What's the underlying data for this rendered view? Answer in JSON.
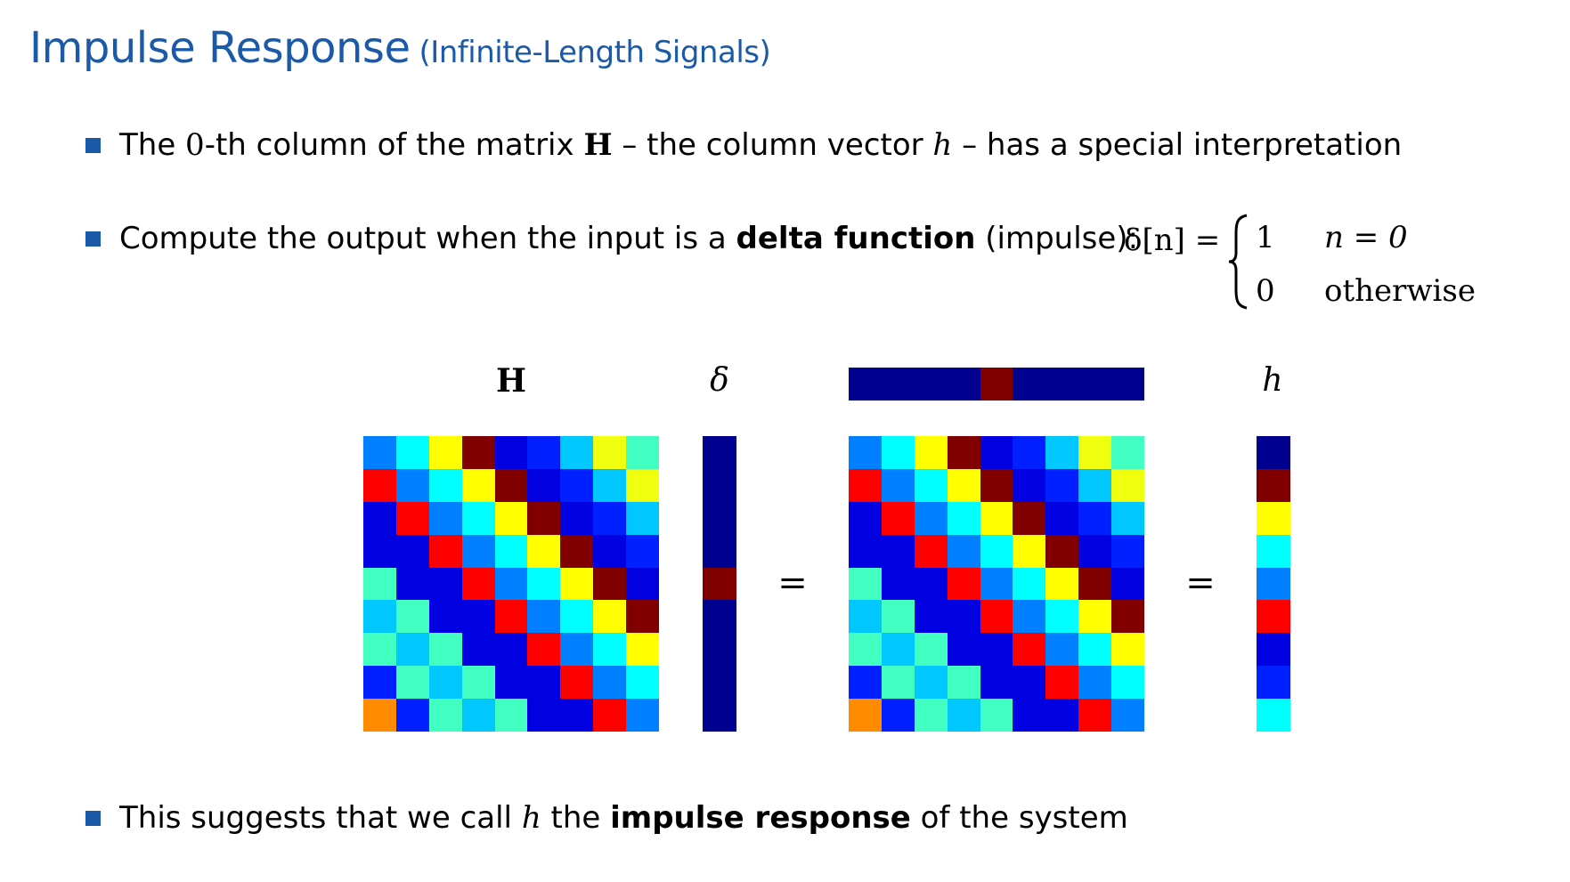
{
  "title": {
    "main": "Impulse Response",
    "sub": "(Infinite-Length Signals)"
  },
  "bullets": [
    {
      "pre": "The ",
      "math1": "0",
      "mid1": "-th column of the matrix ",
      "math2": "H",
      "mid2": " – the column vector ",
      "math3": "h",
      "post": " – has a special interpretation"
    },
    {
      "pre": "Compute the output when the input is a ",
      "bold": "delta function",
      "post": " (impulse):"
    },
    {
      "pre": "This suggests that we call ",
      "math": "h",
      "mid": " the ",
      "bold": "impulse response",
      "post": " of the system"
    }
  ],
  "delta_def": {
    "lhs": "δ[n] =",
    "case1_value": "1",
    "case1_cond": "n = 0",
    "case2_value": "0",
    "case2_cond": "otherwise"
  },
  "labels": {
    "H": "H",
    "delta": "δ",
    "h": "h",
    "equals": "="
  },
  "colors": {
    "title": "#1a5aa8",
    "bullet": "#1a5aa8",
    "palette": {
      "a": "#00008f",
      "b": "#0000e0",
      "c": "#0020ff",
      "d": "#0080ff",
      "e": "#00c8ff",
      "f": "#00ffff",
      "g": "#40ffc0",
      "h": "#ffff00",
      "i": "#f0ff10",
      "j": "#ff8c00",
      "k": "#ff0000",
      "l": "#800000"
    }
  },
  "matrix_H": [
    [
      "d",
      "f",
      "h",
      "l",
      "b",
      "c",
      "e",
      "i",
      "g"
    ],
    [
      "k",
      "d",
      "f",
      "h",
      "l",
      "b",
      "c",
      "e",
      "i"
    ],
    [
      "b",
      "k",
      "d",
      "f",
      "h",
      "l",
      "b",
      "c",
      "e"
    ],
    [
      "b",
      "b",
      "k",
      "d",
      "f",
      "h",
      "l",
      "b",
      "c"
    ],
    [
      "g",
      "b",
      "b",
      "k",
      "d",
      "f",
      "h",
      "l",
      "b"
    ],
    [
      "e",
      "g",
      "b",
      "b",
      "k",
      "d",
      "f",
      "h",
      "l"
    ],
    [
      "g",
      "e",
      "g",
      "b",
      "b",
      "k",
      "d",
      "f",
      "h"
    ],
    [
      "c",
      "g",
      "e",
      "g",
      "b",
      "b",
      "k",
      "d",
      "f"
    ],
    [
      "j",
      "c",
      "g",
      "e",
      "g",
      "b",
      "b",
      "k",
      "d"
    ]
  ],
  "delta_vector": [
    "a",
    "a",
    "a",
    "a",
    "l",
    "a",
    "a",
    "a",
    "a"
  ],
  "delta_row": [
    "a",
    "a",
    "a",
    "a",
    "l",
    "a",
    "a",
    "a",
    "a"
  ],
  "h_vector": [
    "a",
    "l",
    "h",
    "f",
    "d",
    "k",
    "b",
    "c",
    "f"
  ]
}
